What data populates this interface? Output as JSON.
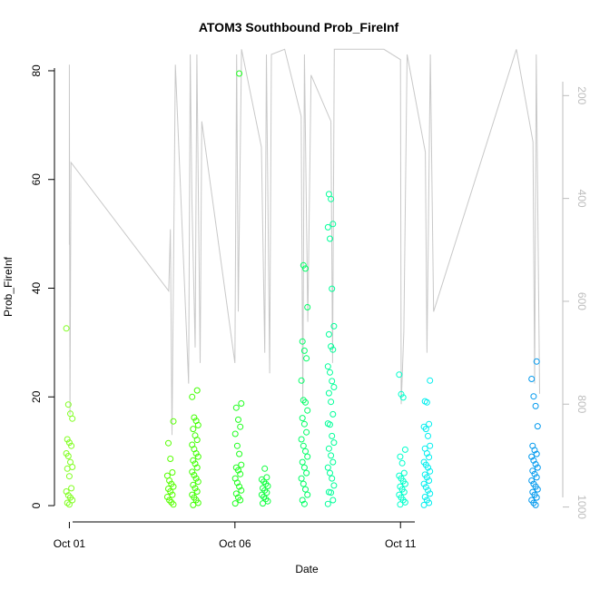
{
  "chart_data": {
    "type": "scatter",
    "title": "ATOM3 Southbound Prob_FireInf",
    "xlabel": "Date",
    "ylabel": "Prob_FireInf",
    "x_ticks": [
      {
        "label": "Oct 01",
        "day": 1
      },
      {
        "label": "Oct 06",
        "day": 6
      },
      {
        "label": "Oct 11",
        "day": 11
      }
    ],
    "xlim_days": [
      0.55,
      15.9
    ],
    "ylim": [
      -3,
      83
    ],
    "y_ticks": [
      0,
      20,
      40,
      60,
      80
    ],
    "y2_ticks": [
      200,
      400,
      600,
      800,
      1000
    ],
    "y2lim": [
      1029,
      120
    ],
    "grid": false,
    "legend": "none",
    "colors": {
      "line": "#c8c8c8",
      "axis": "#000000",
      "axis_right": "#bdbdbd",
      "point_scale": [
        "#7fff00",
        "#00ff00",
        "#00ff7f",
        "#00ffff",
        "#00bfff",
        "#007fff"
      ]
    },
    "clusters": [
      {
        "day": 1.0,
        "color": "#80ff20",
        "values": [
          32.6,
          18.6,
          16.9,
          16.0,
          12.2,
          11.6,
          11.0,
          9.6,
          9.1,
          8.0,
          7.1,
          6.8,
          5.4,
          3.2,
          2.6,
          1.9,
          1.5,
          1.0,
          0.5,
          0.2
        ]
      },
      {
        "day": 4.05,
        "color": "#55ff00",
        "values": [
          15.5,
          11.5,
          8.6,
          6.1,
          5.5,
          4.6,
          4.0,
          3.5,
          3.1,
          2.6,
          2.0,
          1.6,
          1.0,
          0.6,
          0.2
        ]
      },
      {
        "day": 4.8,
        "color": "#40ff00",
        "values": [
          21.2,
          20.0,
          16.2,
          15.6,
          14.8,
          14.1,
          12.9,
          12.1,
          11.2,
          10.4,
          9.6,
          9.0,
          8.3,
          7.7,
          7.0,
          6.2,
          5.6,
          5.0,
          4.4,
          3.8,
          3.2,
          2.6,
          2.0,
          1.5,
          1.0,
          0.5,
          0.1
        ]
      },
      {
        "day": 6.1,
        "color": "#20ff20",
        "values": [
          79.5,
          18.8,
          18.0,
          15.8,
          14.5,
          13.2,
          11.0,
          9.5,
          7.5,
          7.0,
          6.5,
          5.8,
          5.0,
          4.2,
          3.5,
          2.8,
          2.2,
          1.5,
          1.0,
          0.4
        ]
      },
      {
        "day": 6.9,
        "color": "#10ff40",
        "values": [
          6.8,
          5.2,
          4.8,
          4.4,
          4.0,
          3.6,
          3.2,
          2.8,
          2.4,
          2.0,
          1.6,
          1.2,
          0.8,
          0.4
        ]
      },
      {
        "day": 8.1,
        "color": "#00ff66",
        "values": [
          44.2,
          43.6,
          36.5,
          30.2,
          28.5,
          27.1,
          23.0,
          19.4,
          19.0,
          17.5,
          16.1,
          15.0,
          13.5,
          12.2,
          11.0,
          10.0,
          9.0,
          8.0,
          7.0,
          6.0,
          5.0,
          4.0,
          3.0,
          2.0,
          1.0,
          0.3
        ]
      },
      {
        "day": 8.9,
        "color": "#00ff99",
        "values": [
          57.3,
          56.4,
          51.8,
          51.2,
          49.1,
          39.9,
          33.0,
          31.5,
          29.3,
          28.7,
          25.6,
          24.5,
          22.9,
          21.8,
          20.7,
          19.1,
          16.8,
          15.1,
          14.9,
          12.8,
          11.6,
          10.5,
          9.2,
          8.0,
          7.0,
          6.0,
          5.0,
          3.7,
          2.5,
          2.4,
          1.0,
          0.3
        ]
      },
      {
        "day": 11.05,
        "color": "#00ffcc",
        "values": [
          24.1,
          20.5,
          19.9,
          10.3,
          9.0,
          7.8,
          6.0,
          5.5,
          5.0,
          4.5,
          4.0,
          3.5,
          3.0,
          2.5,
          2.0,
          1.5,
          1.0,
          0.6,
          0.2
        ]
      },
      {
        "day": 11.8,
        "color": "#00eeee",
        "values": [
          23.0,
          19.2,
          19.0,
          15.0,
          14.5,
          14.1,
          12.8,
          11.0,
          10.5,
          9.6,
          8.9,
          8.0,
          7.5,
          7.0,
          6.3,
          5.7,
          5.2,
          4.6,
          4.0,
          3.4,
          2.8,
          2.2,
          1.6,
          1.0,
          0.5,
          0.1
        ]
      },
      {
        "day": 15.05,
        "color": "#0099ee",
        "values": [
          26.5,
          23.3,
          20.1,
          18.3,
          14.6,
          11.0,
          10.2,
          9.5,
          9.0,
          8.3,
          7.6,
          7.0,
          6.4,
          5.8,
          5.2,
          4.6,
          4.0,
          3.5,
          3.0,
          2.5,
          2.0,
          1.5,
          1.0,
          0.5,
          0.1
        ]
      }
    ],
    "line_series": {
      "name": "",
      "y_axis": "right",
      "points": [
        [
          1.0,
          490
        ],
        [
          1.0,
          140
        ],
        [
          1.02,
          820
        ],
        [
          1.05,
          330
        ],
        [
          4.0,
          580
        ],
        [
          4.05,
          460
        ],
        [
          4.1,
          860
        ],
        [
          4.2,
          140
        ],
        [
          4.6,
          760
        ],
        [
          4.65,
          120
        ],
        [
          4.7,
          400
        ],
        [
          4.8,
          690
        ],
        [
          4.85,
          120
        ],
        [
          4.95,
          720
        ],
        [
          5.0,
          250
        ],
        [
          6.0,
          720
        ],
        [
          6.05,
          120
        ],
        [
          6.1,
          620
        ],
        [
          6.2,
          110
        ],
        [
          6.8,
          300
        ],
        [
          6.9,
          700
        ],
        [
          6.95,
          120
        ],
        [
          7.05,
          740
        ],
        [
          7.1,
          120
        ],
        [
          7.5,
          110
        ],
        [
          8.0,
          240
        ],
        [
          8.05,
          800
        ],
        [
          8.1,
          120
        ],
        [
          8.2,
          640
        ],
        [
          8.3,
          160
        ],
        [
          8.9,
          250
        ],
        [
          8.95,
          720
        ],
        [
          9.0,
          110
        ],
        [
          10.5,
          110
        ],
        [
          11.0,
          130
        ],
        [
          11.02,
          800
        ],
        [
          11.1,
          660
        ],
        [
          11.2,
          120
        ],
        [
          11.75,
          310
        ],
        [
          11.8,
          700
        ],
        [
          11.9,
          120
        ],
        [
          12.0,
          620
        ],
        [
          14.5,
          110
        ],
        [
          15.0,
          290
        ],
        [
          15.05,
          760
        ],
        [
          15.1,
          120
        ],
        [
          15.2,
          780
        ]
      ]
    }
  }
}
